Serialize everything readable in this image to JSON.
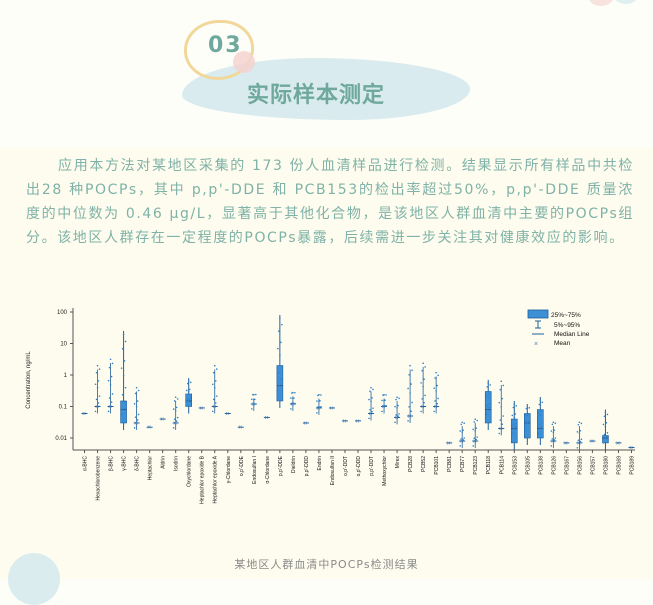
{
  "header": {
    "section_number": "03",
    "section_title": "实际样本测定"
  },
  "paragraph": {
    "text": "应用本方法对某地区采集的 173 份人血清样品进行检测。结果显示所有样品中共检出28 种POCPs，其中 p,p'-DDE 和 PCB153的检出率超过50%，p,p'-DDE 质量浓度的中位数为 0.46 μg/L，显著高于其他化合物，是该地区人群血清中主要的POCPs组分。该地区人群存在一定程度的POCPs暴露，后续需进一步关注其对健康效应的影响。"
  },
  "caption": "某地区人群血清中POCPs检测结果",
  "colors": {
    "accent_teal": "#6fa89c",
    "text_teal": "#7fb2a8",
    "box_blue": "#2f82c8",
    "point_blue": "#1f6fb5",
    "ring_yellow": "#f1d79a",
    "blob_blue": "#d7eaee"
  },
  "chart_data": {
    "type": "box",
    "title": "",
    "xlabel": "",
    "ylabel": "Concentration, ng/mL",
    "yscale": "log",
    "ylim": [
      0.001,
      100
    ],
    "yticks": [
      "100",
      "10",
      "1",
      "0.1",
      "0.01"
    ],
    "legend": [
      "25%~75%",
      "5%~95%",
      "Median Line",
      "Mean"
    ],
    "legend_position": "upper right",
    "categories": [
      "α-BHC",
      "Hexachlorobenzene",
      "β-BHC",
      "γ-BHC",
      "δ-BHC",
      "Heptachlor",
      "Aldrin",
      "Isodrin",
      "Oxychlordane",
      "Heptachlor epoxide B",
      "Heptachlor epoxide A",
      "γ-Chlordane",
      "o,p'-DDE",
      "Endosulfan I",
      "α-Chlordane",
      "p,p'-DDE",
      "Dieldrin",
      "p,p'-DDD",
      "Endrin",
      "Endosulfan II",
      "o,p'-DDT",
      "o,p'-DDD",
      "p,p'-DDT",
      "Methoxychlor",
      "Mirex",
      "PCB28",
      "PCB52",
      "PCB101",
      "PCB81",
      "PCB77",
      "PCB123",
      "PCB118",
      "PCB114",
      "PCB153",
      "PCB105",
      "PCB138",
      "PCB126",
      "PCB167",
      "PCB156",
      "PCB157",
      "PCB180",
      "PCB169",
      "PCB189"
    ],
    "series": [
      {
        "name": "median",
        "values": [
          0.06,
          0.1,
          0.1,
          0.08,
          0.03,
          0.022,
          0.04,
          0.03,
          0.15,
          0.09,
          0.1,
          0.06,
          0.022,
          0.12,
          0.045,
          0.46,
          0.12,
          0.03,
          0.09,
          0.09,
          0.035,
          0.035,
          0.06,
          0.1,
          0.045,
          0.05,
          0.1,
          0.1,
          0.007,
          0.008,
          0.008,
          0.08,
          0.02,
          0.02,
          0.03,
          0.02,
          0.008,
          0.007,
          0.007,
          0.008,
          0.01,
          0.007,
          0.005
        ]
      },
      {
        "name": "max",
        "values": [
          0.06,
          2.5,
          4,
          25,
          0.5,
          0.022,
          0.04,
          0.25,
          0.8,
          0.09,
          2.5,
          0.06,
          0.022,
          0.3,
          0.045,
          80,
          0.35,
          0.03,
          0.3,
          0.09,
          0.035,
          0.035,
          0.5,
          0.3,
          0.25,
          2.5,
          3,
          1.5,
          0.007,
          0.04,
          0.05,
          0.7,
          0.8,
          0.15,
          0.12,
          0.2,
          0.04,
          0.007,
          0.04,
          0.008,
          0.08,
          0.007,
          0.005
        ]
      }
    ]
  }
}
